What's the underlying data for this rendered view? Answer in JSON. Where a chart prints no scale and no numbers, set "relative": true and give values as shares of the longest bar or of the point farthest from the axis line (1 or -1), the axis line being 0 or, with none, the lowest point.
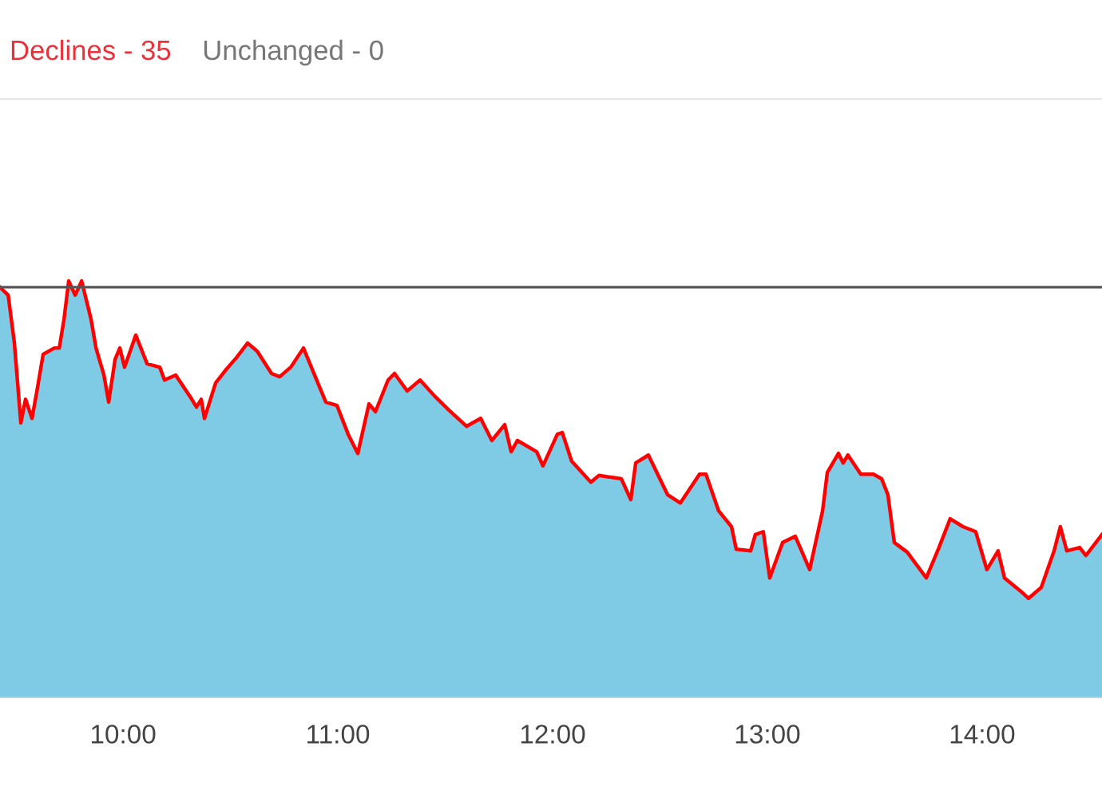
{
  "chart_data": {
    "type": "area",
    "relative": true,
    "annotations": [
      "Declines - 35",
      "Unchanged - 0"
    ],
    "xlim": [
      9.427,
      14.558
    ],
    "xticks": [
      {
        "value": 10,
        "label": "10:00"
      },
      {
        "value": 11,
        "label": "11:00"
      },
      {
        "value": 12,
        "label": "12:00"
      },
      {
        "value": 13,
        "label": "13:00"
      },
      {
        "value": 14,
        "label": "14:00"
      }
    ],
    "ref_lines": [
      {
        "axis": "y",
        "value": 0.985,
        "label": null,
        "color": "#555555"
      }
    ],
    "grid": false,
    "legend": false,
    "series": [
      {
        "color": "#7fcbe6",
        "x": [
          9.427,
          9.465,
          9.494,
          9.524,
          9.546,
          9.576,
          9.599,
          9.628,
          9.68,
          9.703,
          9.725,
          9.747,
          9.777,
          9.807,
          9.851,
          9.874,
          9.911,
          9.933,
          9.963,
          9.985,
          10.007,
          10.059,
          10.112,
          10.171,
          10.193,
          10.245,
          10.32,
          10.342,
          10.364,
          10.379,
          10.431,
          10.476,
          10.528,
          10.58,
          10.625,
          10.691,
          10.729,
          10.781,
          10.84,
          10.892,
          10.944,
          10.996,
          11.048,
          11.093,
          11.145,
          11.175,
          11.234,
          11.264,
          11.323,
          11.383,
          11.45,
          11.517,
          11.599,
          11.665,
          11.717,
          11.777,
          11.807,
          11.836,
          11.926,
          11.955,
          12.022,
          12.045,
          12.089,
          12.178,
          12.216,
          12.32,
          12.364,
          12.387,
          12.446,
          12.535,
          12.595,
          12.684,
          12.714,
          12.773,
          12.833,
          12.855,
          12.922,
          12.944,
          12.981,
          13.011,
          13.071,
          13.13,
          13.197,
          13.257,
          13.279,
          13.331,
          13.353,
          13.375,
          13.435,
          13.494,
          13.532,
          13.561,
          13.591,
          13.651,
          13.74,
          13.799,
          13.851,
          13.911,
          13.97,
          14.022,
          14.074,
          14.104,
          14.193,
          14.216,
          14.275,
          14.335,
          14.364,
          14.394,
          14.454,
          14.483,
          14.558
        ],
        "values": [
          0.985,
          0.966,
          0.851,
          0.659,
          0.716,
          0.67,
          0.736,
          0.824,
          0.839,
          0.839,
          0.908,
          1.0,
          0.966,
          1.0,
          0.908,
          0.839,
          0.774,
          0.709,
          0.812,
          0.839,
          0.793,
          0.87,
          0.801,
          0.793,
          0.762,
          0.774,
          0.716,
          0.697,
          0.716,
          0.67,
          0.755,
          0.785,
          0.816,
          0.851,
          0.831,
          0.778,
          0.77,
          0.793,
          0.839,
          0.774,
          0.709,
          0.701,
          0.632,
          0.586,
          0.705,
          0.686,
          0.762,
          0.778,
          0.736,
          0.762,
          0.724,
          0.69,
          0.651,
          0.67,
          0.617,
          0.655,
          0.59,
          0.617,
          0.59,
          0.556,
          0.632,
          0.636,
          0.567,
          0.517,
          0.533,
          0.525,
          0.475,
          0.563,
          0.582,
          0.487,
          0.467,
          0.536,
          0.536,
          0.448,
          0.41,
          0.356,
          0.352,
          0.391,
          0.398,
          0.287,
          0.372,
          0.387,
          0.307,
          0.448,
          0.54,
          0.586,
          0.563,
          0.582,
          0.536,
          0.536,
          0.525,
          0.487,
          0.372,
          0.349,
          0.287,
          0.36,
          0.429,
          0.41,
          0.398,
          0.307,
          0.352,
          0.287,
          0.249,
          0.238,
          0.264,
          0.352,
          0.41,
          0.352,
          0.36,
          0.341,
          0.391
        ]
      },
      {
        "type": "line",
        "color": "#ff0000",
        "x": [
          9.427,
          9.465,
          9.494,
          9.524,
          9.546,
          9.576,
          9.599,
          9.628,
          9.68,
          9.703,
          9.725,
          9.747,
          9.777,
          9.807,
          9.851,
          9.874,
          9.911,
          9.933,
          9.963,
          9.985,
          10.007,
          10.059,
          10.112,
          10.171,
          10.193,
          10.245,
          10.32,
          10.342,
          10.364,
          10.379,
          10.431,
          10.476,
          10.528,
          10.58,
          10.625,
          10.691,
          10.729,
          10.781,
          10.84,
          10.892,
          10.944,
          10.996,
          11.048,
          11.093,
          11.145,
          11.175,
          11.234,
          11.264,
          11.323,
          11.383,
          11.45,
          11.517,
          11.599,
          11.665,
          11.717,
          11.777,
          11.807,
          11.836,
          11.926,
          11.955,
          12.022,
          12.045,
          12.089,
          12.178,
          12.216,
          12.32,
          12.364,
          12.387,
          12.446,
          12.535,
          12.595,
          12.684,
          12.714,
          12.773,
          12.833,
          12.855,
          12.922,
          12.944,
          12.981,
          13.011,
          13.071,
          13.13,
          13.197,
          13.257,
          13.279,
          13.331,
          13.353,
          13.375,
          13.435,
          13.494,
          13.532,
          13.561,
          13.591,
          13.651,
          13.74,
          13.799,
          13.851,
          13.911,
          13.97,
          14.022,
          14.074,
          14.104,
          14.193,
          14.216,
          14.275,
          14.335,
          14.364,
          14.394,
          14.454,
          14.483,
          14.558
        ],
        "values": [
          0.985,
          0.966,
          0.851,
          0.659,
          0.716,
          0.67,
          0.736,
          0.824,
          0.839,
          0.839,
          0.908,
          1.0,
          0.966,
          1.0,
          0.908,
          0.839,
          0.774,
          0.709,
          0.812,
          0.839,
          0.793,
          0.87,
          0.801,
          0.793,
          0.762,
          0.774,
          0.716,
          0.697,
          0.716,
          0.67,
          0.755,
          0.785,
          0.816,
          0.851,
          0.831,
          0.778,
          0.77,
          0.793,
          0.839,
          0.774,
          0.709,
          0.701,
          0.632,
          0.586,
          0.705,
          0.686,
          0.762,
          0.778,
          0.736,
          0.762,
          0.724,
          0.69,
          0.651,
          0.67,
          0.617,
          0.655,
          0.59,
          0.617,
          0.59,
          0.556,
          0.632,
          0.636,
          0.567,
          0.517,
          0.533,
          0.525,
          0.475,
          0.563,
          0.582,
          0.487,
          0.467,
          0.536,
          0.536,
          0.448,
          0.41,
          0.356,
          0.352,
          0.391,
          0.398,
          0.287,
          0.372,
          0.387,
          0.307,
          0.448,
          0.54,
          0.586,
          0.563,
          0.582,
          0.536,
          0.536,
          0.525,
          0.487,
          0.372,
          0.349,
          0.287,
          0.36,
          0.429,
          0.41,
          0.398,
          0.307,
          0.352,
          0.287,
          0.249,
          0.238,
          0.264,
          0.352,
          0.41,
          0.352,
          0.36,
          0.341,
          0.391
        ]
      }
    ]
  }
}
